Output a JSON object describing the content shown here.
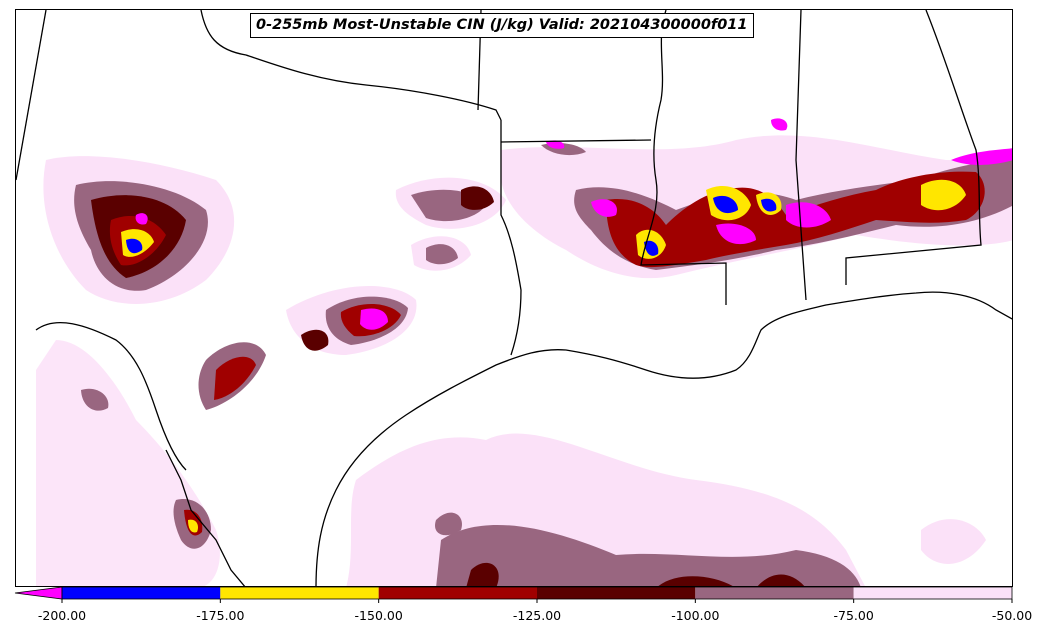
{
  "title": "0-255mb Most-Unstable CIN (J/kg) Valid: 202104300000f011",
  "colorbar": {
    "ticks": [
      "-200.00",
      "-175.00",
      "-150.00",
      "-125.00",
      "-100.00",
      "-75.00",
      "-50.00"
    ],
    "bins": [
      {
        "range": [
          -200,
          -175
        ],
        "color": "#0000ff"
      },
      {
        "range": [
          -175,
          -150
        ],
        "color": "#ffe600"
      },
      {
        "range": [
          -150,
          -125
        ],
        "color": "#a00000"
      },
      {
        "range": [
          -125,
          -100
        ],
        "color": "#5a0000"
      },
      {
        "range": [
          -100,
          -75
        ],
        "color": "#996680"
      },
      {
        "range": [
          -75,
          -50
        ],
        "color": "#fbe1f8"
      }
    ],
    "under_color": "#ff00ff",
    "extend": "min"
  },
  "colors": {
    "magenta": "#ff00ff",
    "blue": "#0000ff",
    "yellow": "#ffe600",
    "red": "#a00000",
    "darkred": "#5a0000",
    "mauve": "#996680",
    "pink": "#fbe1f8"
  }
}
